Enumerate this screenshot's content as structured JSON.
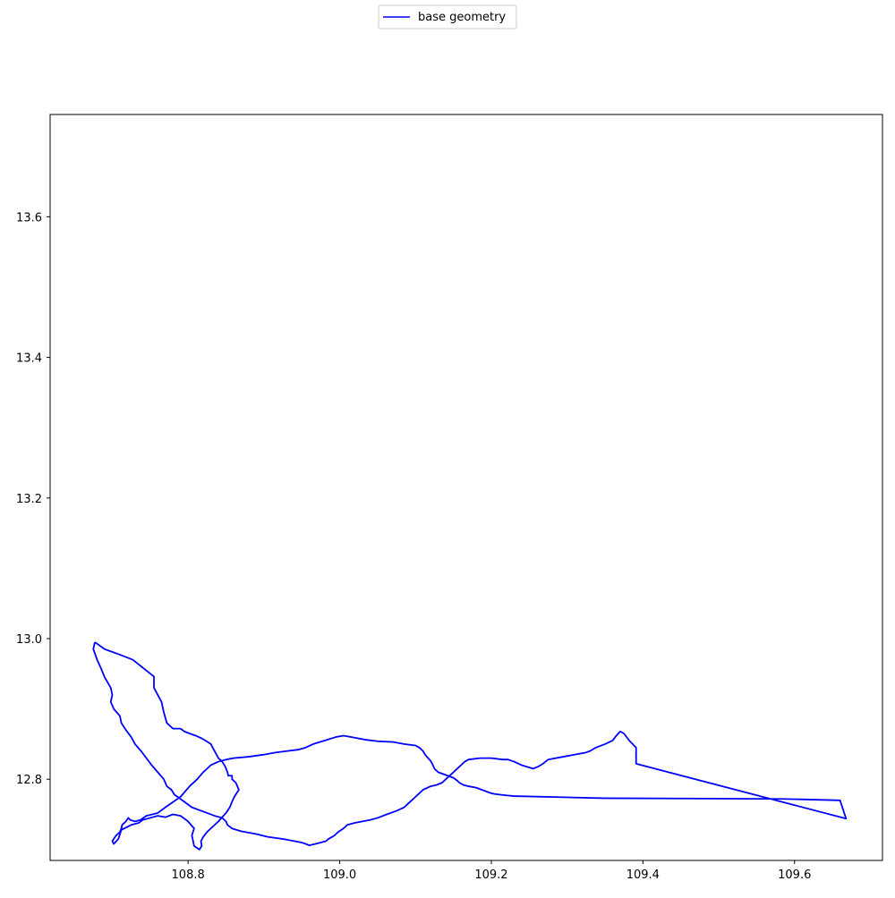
{
  "chart_data": {
    "type": "line",
    "title": "",
    "xlabel": "",
    "ylabel": "",
    "xlim": [
      108.618,
      109.716
    ],
    "ylim": [
      12.6845,
      13.7455
    ],
    "xticks": [
      108.8,
      109.0,
      109.2,
      109.4,
      109.6
    ],
    "xtick_labels": [
      "108.8",
      "109.0",
      "109.2",
      "109.4",
      "109.6"
    ],
    "yticks": [
      12.8,
      13.0,
      13.2,
      13.4,
      13.6
    ],
    "ytick_labels": [
      "12.8",
      "13.0",
      "13.2",
      "13.4",
      "13.6"
    ],
    "grid": false,
    "legend": {
      "placement": "top-center",
      "entries": [
        {
          "label": "base geometry",
          "color": "#0000ff"
        }
      ]
    },
    "series": [
      {
        "name": "base geometry",
        "color": "#0000ff",
        "x": [
          108.677,
          108.69,
          108.708,
          108.727,
          108.755,
          108.755,
          108.76,
          108.765,
          108.768,
          108.772,
          108.78,
          108.79,
          108.795,
          108.802,
          108.81,
          108.818,
          108.823,
          108.83,
          108.835,
          108.84,
          108.845,
          108.849,
          108.852,
          108.853,
          108.858,
          108.858,
          108.863,
          108.867,
          108.861,
          108.858,
          108.855,
          108.85,
          108.84,
          108.83,
          108.825,
          108.82,
          108.817,
          108.818,
          108.815,
          108.808,
          108.805,
          108.808,
          108.8,
          108.79,
          108.78,
          108.77,
          108.76,
          108.75,
          108.74,
          108.735,
          108.725,
          108.712,
          108.708,
          108.702,
          108.7,
          108.705,
          108.71,
          108.712,
          108.713,
          108.718,
          108.721,
          108.724,
          108.73,
          108.737,
          108.745,
          108.76,
          108.77,
          108.79,
          108.802,
          108.812,
          108.82,
          108.83,
          108.84,
          108.85,
          108.86,
          108.88,
          108.9,
          108.915,
          108.93,
          108.945,
          108.955,
          108.965,
          108.98,
          108.995,
          109.005,
          109.015,
          109.025,
          109.035,
          109.05,
          109.07,
          109.085,
          109.1,
          109.105,
          109.11,
          109.112,
          109.115,
          109.12,
          109.123,
          109.125,
          109.13,
          109.14,
          109.15,
          109.155,
          109.158,
          109.163,
          109.17,
          109.18,
          109.185,
          109.19,
          109.195,
          109.2,
          109.205,
          109.212,
          109.22,
          109.23,
          109.348,
          109.585,
          109.66,
          109.668,
          109.391,
          109.391,
          109.382,
          109.375,
          109.37,
          109.365,
          109.36,
          109.35,
          109.338,
          109.33,
          109.325,
          109.315,
          109.305,
          109.295,
          109.285,
          109.275,
          109.268,
          109.262,
          109.255,
          109.24,
          109.23,
          109.222,
          109.215,
          109.2,
          109.185,
          109.17,
          109.165,
          109.16,
          109.155,
          109.15,
          109.145,
          109.14,
          109.135,
          109.128,
          109.12,
          109.11,
          109.105,
          109.1,
          109.095,
          109.09,
          109.085,
          109.075,
          109.062,
          109.05,
          109.04,
          109.03,
          109.02,
          109.01,
          109.005,
          108.998,
          108.993,
          108.99,
          108.985,
          108.982,
          108.975,
          108.968,
          108.96,
          108.95,
          108.94,
          108.925,
          108.905,
          108.89,
          108.87,
          108.858,
          108.852,
          108.85,
          108.845,
          108.835,
          108.825,
          108.815,
          108.805,
          108.8,
          108.795,
          108.79,
          108.782,
          108.778,
          108.772,
          108.768,
          108.76,
          108.752,
          108.745,
          108.738,
          108.73,
          108.725,
          108.718,
          108.712,
          108.71,
          108.702,
          108.698,
          108.7,
          108.698,
          108.69,
          108.685,
          108.68,
          108.675,
          108.677
        ],
        "y": [
          12.995,
          12.985,
          12.978,
          12.97,
          12.946,
          12.93,
          12.92,
          12.91,
          12.895,
          12.88,
          12.872,
          12.872,
          12.868,
          12.865,
          12.862,
          12.858,
          12.855,
          12.85,
          12.84,
          12.83,
          12.825,
          12.818,
          12.81,
          12.805,
          12.805,
          12.8,
          12.795,
          12.785,
          12.775,
          12.768,
          12.76,
          12.752,
          12.74,
          12.73,
          12.725,
          12.718,
          12.712,
          12.705,
          12.7,
          12.705,
          12.72,
          12.73,
          12.74,
          12.748,
          12.75,
          12.746,
          12.748,
          12.745,
          12.742,
          12.738,
          12.735,
          12.728,
          12.715,
          12.708,
          12.712,
          12.72,
          12.725,
          12.73,
          12.735,
          12.74,
          12.745,
          12.742,
          12.74,
          12.742,
          12.748,
          12.752,
          12.76,
          12.775,
          12.79,
          12.8,
          12.81,
          12.82,
          12.825,
          12.828,
          12.83,
          12.832,
          12.835,
          12.838,
          12.84,
          12.842,
          12.845,
          12.85,
          12.855,
          12.86,
          12.862,
          12.86,
          12.858,
          12.856,
          12.854,
          12.853,
          12.85,
          12.848,
          12.845,
          12.84,
          12.836,
          12.832,
          12.826,
          12.82,
          12.815,
          12.81,
          12.806,
          12.802,
          12.798,
          12.795,
          12.792,
          12.79,
          12.788,
          12.786,
          12.784,
          12.782,
          12.78,
          12.779,
          12.778,
          12.777,
          12.776,
          12.773,
          12.772,
          12.77,
          12.744,
          12.822,
          12.845,
          12.855,
          12.865,
          12.868,
          12.862,
          12.855,
          12.85,
          12.845,
          12.84,
          12.838,
          12.836,
          12.834,
          12.832,
          12.83,
          12.828,
          12.822,
          12.818,
          12.815,
          12.82,
          12.825,
          12.828,
          12.828,
          12.83,
          12.83,
          12.828,
          12.825,
          12.82,
          12.815,
          12.81,
          12.805,
          12.8,
          12.795,
          12.792,
          12.79,
          12.785,
          12.78,
          12.775,
          12.77,
          12.765,
          12.76,
          12.755,
          12.75,
          12.745,
          12.742,
          12.74,
          12.738,
          12.735,
          12.73,
          12.725,
          12.72,
          12.718,
          12.715,
          12.712,
          12.71,
          12.708,
          12.706,
          12.71,
          12.712,
          12.715,
          12.718,
          12.722,
          12.726,
          12.73,
          12.735,
          12.74,
          12.745,
          12.748,
          12.752,
          12.756,
          12.76,
          12.764,
          12.768,
          12.772,
          12.778,
          12.785,
          12.79,
          12.8,
          12.81,
          12.82,
          12.83,
          12.84,
          12.85,
          12.86,
          12.87,
          12.88,
          12.89,
          12.9,
          12.91,
          12.92,
          12.93,
          12.945,
          12.958,
          12.97,
          12.985,
          12.995
        ]
      }
    ]
  }
}
